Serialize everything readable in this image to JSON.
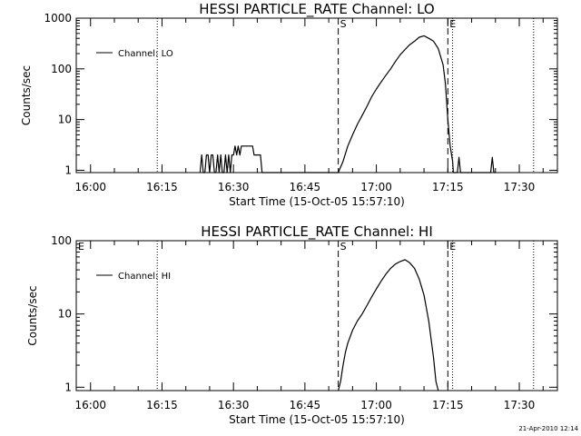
{
  "timestamp": "21-Apr-2010 12:14",
  "chart_data": [
    {
      "type": "line",
      "title": "HESSI PARTICLE_RATE Channel: LO",
      "xlabel": "Start Time (15-Oct-05 15:57:10)",
      "ylabel": "Counts/sec",
      "yscale": "log",
      "xlim": [
        "15:57",
        "17:38"
      ],
      "ylim": [
        0.9,
        1000
      ],
      "xticks": [
        "16:00",
        "16:15",
        "16:30",
        "16:45",
        "17:00",
        "17:15",
        "17:30"
      ],
      "yticks": [
        "1",
        "10",
        "100",
        "1000"
      ],
      "legend": "top-left",
      "markers": [
        {
          "label": "S",
          "time": "16:52",
          "style": "dashed"
        },
        {
          "label": "E",
          "time": "17:15",
          "style": "dashed"
        }
      ],
      "dotted_lines": [
        "16:14",
        "17:16",
        "17:33"
      ],
      "series": [
        {
          "name": "Channel: LO",
          "x": [
            "16:23:00",
            "16:23:20",
            "16:23:40",
            "16:24:00",
            "16:24:20",
            "16:24:40",
            "16:25:00",
            "16:25:20",
            "16:25:40",
            "16:26:00",
            "16:26:20",
            "16:26:40",
            "16:27:00",
            "16:27:20",
            "16:27:40",
            "16:28:00",
            "16:28:20",
            "16:28:40",
            "16:29:00",
            "16:29:20",
            "16:29:40",
            "16:30:00",
            "16:30:20",
            "16:30:40",
            "16:31:00",
            "16:31:20",
            "16:31:40",
            "16:32:00",
            "16:32:20",
            "16:32:40",
            "16:33:00",
            "16:33:20",
            "16:33:40",
            "16:34:00",
            "16:34:20",
            "16:34:40",
            "16:35:00",
            "16:35:20",
            "16:35:40",
            "16:36:00",
            "16:52:00",
            "16:53:00",
            "16:54:00",
            "16:55:00",
            "16:56:00",
            "16:57:00",
            "16:58:00",
            "16:59:00",
            "17:00:00",
            "17:01:00",
            "17:02:00",
            "17:03:00",
            "17:04:00",
            "17:05:00",
            "17:06:00",
            "17:07:00",
            "17:08:00",
            "17:09:00",
            "17:10:00",
            "17:11:00",
            "17:12:00",
            "17:13:00",
            "17:14:00",
            "17:14:30",
            "17:15:00",
            "17:15:30",
            "17:16:00",
            "17:16:10",
            "17:16:20",
            "17:16:40",
            "17:17:00",
            "17:17:20",
            "17:17:40",
            "17:24:00",
            "17:24:20",
            "17:24:40",
            "17:25:00"
          ],
          "y": [
            0.9,
            2,
            0.9,
            0.9,
            2,
            2,
            0.9,
            2,
            2,
            0.9,
            0.9,
            2,
            0.9,
            2,
            0.9,
            0.9,
            2,
            0.9,
            2,
            0.9,
            2,
            2,
            3,
            2,
            3,
            2,
            3,
            3,
            3,
            3,
            3,
            3,
            3,
            3,
            2,
            2,
            2,
            2,
            2,
            0.9,
            0.9,
            1.5,
            3,
            5,
            8,
            12,
            18,
            28,
            40,
            55,
            75,
            100,
            140,
            190,
            240,
            300,
            350,
            420,
            450,
            400,
            350,
            250,
            120,
            50,
            10,
            3,
            1.5,
            0.9,
            0.9,
            0.9,
            0.9,
            1.8,
            0.9,
            0.9,
            1.8,
            0.9,
            0.9
          ]
        }
      ]
    },
    {
      "type": "line",
      "title": "HESSI PARTICLE_RATE Channel: HI",
      "xlabel": "Start Time (15-Oct-05 15:57:10)",
      "ylabel": "Counts/sec",
      "yscale": "log",
      "xlim": [
        "15:57",
        "17:38"
      ],
      "ylim": [
        0.9,
        100
      ],
      "xticks": [
        "16:00",
        "16:15",
        "16:30",
        "16:45",
        "17:00",
        "17:15",
        "17:30"
      ],
      "yticks": [
        "1",
        "10",
        "100"
      ],
      "legend": "top-left",
      "markers": [
        {
          "label": "E",
          "time": "15:57",
          "style": "none"
        },
        {
          "label": "S",
          "time": "16:52",
          "style": "dashed"
        },
        {
          "label": "E",
          "time": "17:15",
          "style": "dashed"
        }
      ],
      "dotted_lines": [
        "16:14",
        "17:16",
        "17:33"
      ],
      "series": [
        {
          "name": "Channel: HI",
          "x": [
            "16:52:00",
            "16:52:30",
            "16:53:00",
            "16:53:30",
            "16:54:00",
            "16:55:00",
            "16:56:00",
            "16:57:00",
            "16:58:00",
            "16:59:00",
            "17:00:00",
            "17:01:00",
            "17:02:00",
            "17:03:00",
            "17:04:00",
            "17:05:00",
            "17:06:00",
            "17:07:00",
            "17:08:00",
            "17:09:00",
            "17:10:00",
            "17:11:00",
            "17:12:00",
            "17:12:30",
            "17:13:00"
          ],
          "y": [
            0.9,
            1.2,
            2,
            3,
            4,
            6,
            8,
            10,
            13,
            17,
            22,
            28,
            35,
            42,
            48,
            52,
            55,
            50,
            42,
            30,
            18,
            8,
            2.5,
            1.2,
            0.9
          ]
        }
      ]
    }
  ]
}
